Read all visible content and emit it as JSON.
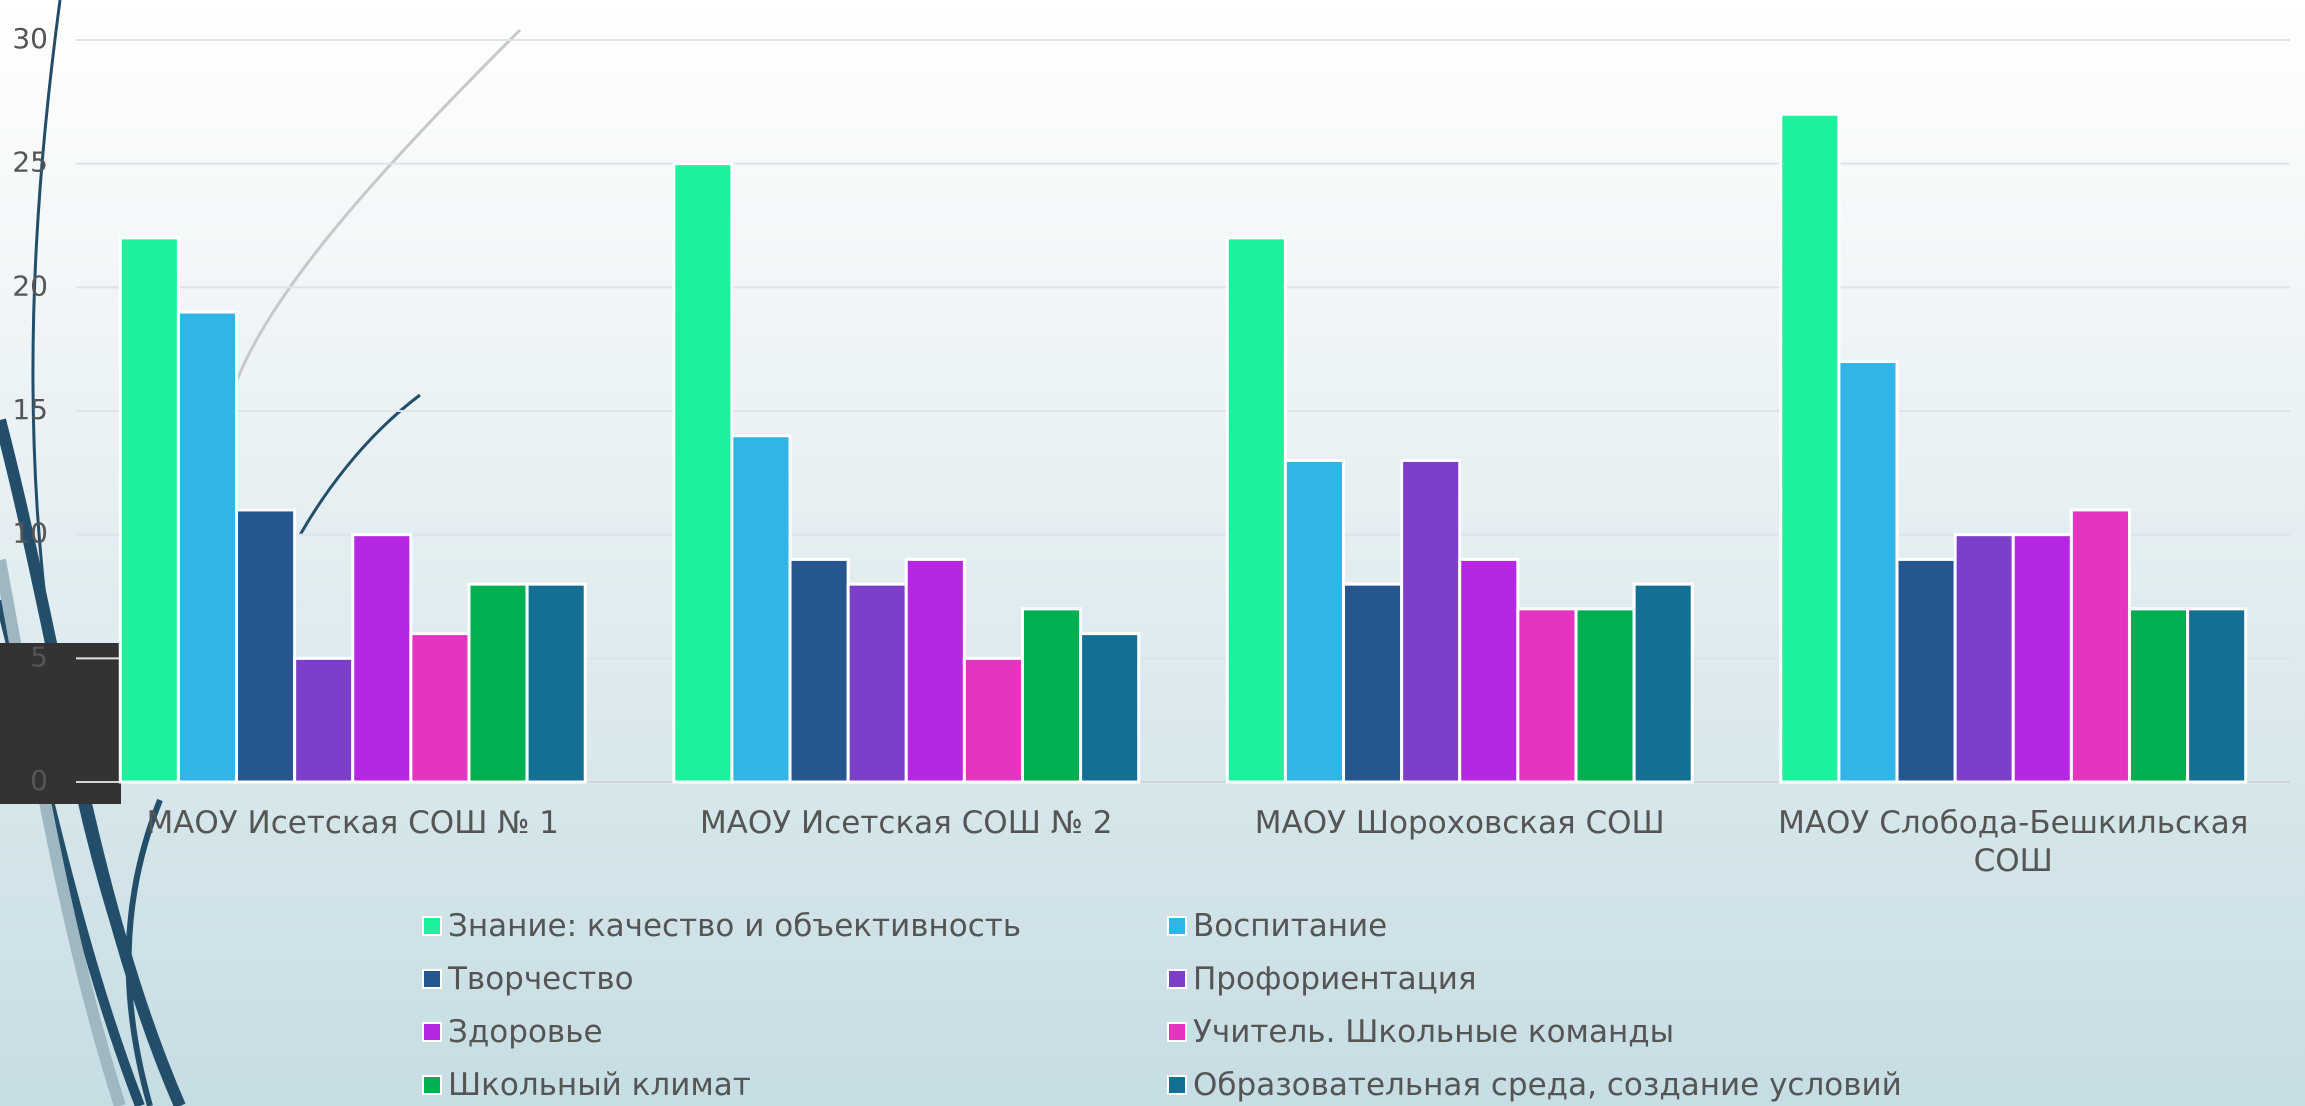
{
  "chart_data": {
    "type": "bar",
    "categories": [
      "МАОУ Исетская СОШ № 1",
      "МАОУ Исетская СОШ № 2",
      "МАОУ Шороховская СОШ",
      "МАОУ Слобода-Бешкильская СОШ"
    ],
    "series": [
      {
        "name": "Знание: качество и объективность",
        "color": "#1cf29c",
        "values": [
          22,
          25,
          22,
          27
        ]
      },
      {
        "name": "Воспитание",
        "color": "#31b4e6",
        "values": [
          19,
          14,
          13,
          17
        ]
      },
      {
        "name": "Творчество",
        "color": "#25568f",
        "values": [
          11,
          9,
          8,
          9
        ]
      },
      {
        "name": "Профориентация",
        "color": "#7d3fc9",
        "values": [
          5,
          8,
          13,
          10
        ]
      },
      {
        "name": "Здоровье",
        "color": "#b527e3",
        "values": [
          10,
          9,
          9,
          10
        ]
      },
      {
        "name": "Учитель. Школьные команды",
        "color": "#e535c0",
        "values": [
          6,
          5,
          7,
          11
        ]
      },
      {
        "name": "Школьный климат",
        "color": "#00b050",
        "values": [
          8,
          7,
          7,
          7
        ]
      },
      {
        "name": "Образовательная среда, создание условий",
        "color": "#146f95",
        "values": [
          8,
          6,
          8,
          7
        ]
      }
    ],
    "ylim": [
      0,
      30
    ],
    "yticks": [
      0,
      5,
      10,
      15,
      20,
      25,
      30
    ],
    "grid": true
  }
}
